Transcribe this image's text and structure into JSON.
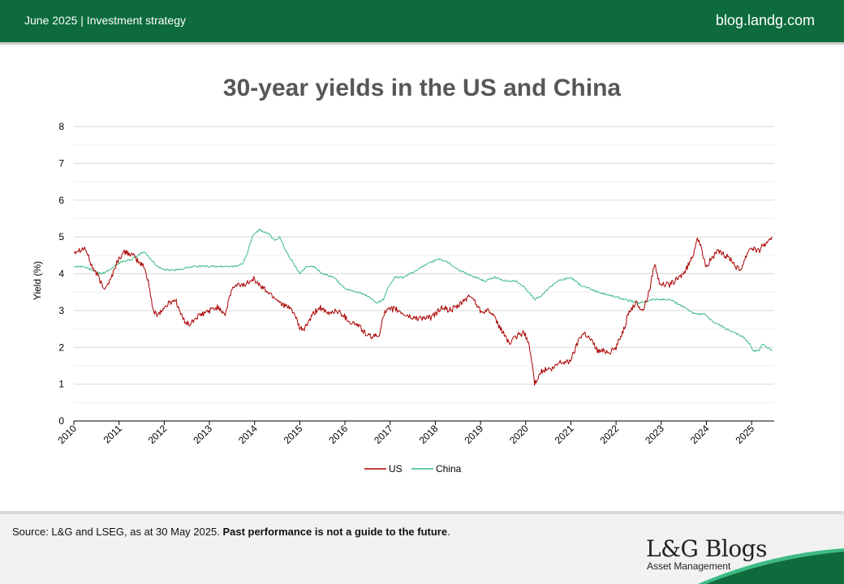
{
  "header": {
    "left_text": "June 2025 | Investment strategy",
    "right_text": "blog.landg.com"
  },
  "chart_data": {
    "type": "line",
    "title": "30-year yields in the US and China",
    "xlabel": "",
    "ylabel": "Yield (%)",
    "ylim": [
      0,
      8
    ],
    "yticks": [
      "0",
      "1",
      "2",
      "3",
      "4",
      "5",
      "6",
      "7",
      "8"
    ],
    "xlim": [
      2010.0,
      2025.5
    ],
    "xticks": [
      "2010",
      "2011",
      "2012",
      "2013",
      "2014",
      "2015",
      "2016",
      "2017",
      "2018",
      "2019",
      "2020",
      "2021",
      "2022",
      "2023",
      "2024",
      "2025"
    ],
    "grid": "horizontal",
    "legend": "bottom-center",
    "series": [
      {
        "name": "US",
        "color": "#aa0000",
        "x": [
          2010.0,
          2010.1,
          2010.25,
          2010.4,
          2010.55,
          2010.65,
          2010.8,
          2010.95,
          2011.05,
          2011.15,
          2011.3,
          2011.45,
          2011.55,
          2011.65,
          2011.75,
          2011.85,
          2011.95,
          2012.1,
          2012.25,
          2012.4,
          2012.55,
          2012.7,
          2012.85,
          2013.0,
          2013.2,
          2013.35,
          2013.5,
          2013.65,
          2013.8,
          2013.95,
          2014.1,
          2014.3,
          2014.5,
          2014.7,
          2014.85,
          2015.0,
          2015.1,
          2015.3,
          2015.45,
          2015.6,
          2015.8,
          2015.95,
          2016.1,
          2016.3,
          2016.5,
          2016.6,
          2016.75,
          2016.85,
          2016.95,
          2017.1,
          2017.3,
          2017.5,
          2017.7,
          2017.9,
          2018.0,
          2018.15,
          2018.3,
          2018.5,
          2018.65,
          2018.8,
          2018.9,
          2019.0,
          2019.2,
          2019.4,
          2019.55,
          2019.65,
          2019.8,
          2019.95,
          2020.05,
          2020.15,
          2020.2,
          2020.3,
          2020.45,
          2020.6,
          2020.75,
          2020.95,
          2021.05,
          2021.2,
          2021.3,
          2021.45,
          2021.6,
          2021.75,
          2021.9,
          2022.0,
          2022.1,
          2022.2,
          2022.3,
          2022.45,
          2022.6,
          2022.75,
          2022.85,
          2022.95,
          2023.05,
          2023.2,
          2023.4,
          2023.55,
          2023.7,
          2023.8,
          2023.9,
          2024.0,
          2024.1,
          2024.25,
          2024.4,
          2024.55,
          2024.65,
          2024.75,
          2024.85,
          2024.95,
          2025.05,
          2025.15,
          2025.25,
          2025.35,
          2025.45
        ],
        "values": [
          4.6,
          4.65,
          4.7,
          4.2,
          3.9,
          3.6,
          3.8,
          4.3,
          4.5,
          4.6,
          4.5,
          4.3,
          4.2,
          3.8,
          3.0,
          2.9,
          3.0,
          3.2,
          3.3,
          2.8,
          2.6,
          2.8,
          2.9,
          3.0,
          3.1,
          2.9,
          3.6,
          3.7,
          3.7,
          3.9,
          3.7,
          3.5,
          3.3,
          3.1,
          3.0,
          2.5,
          2.5,
          2.9,
          3.1,
          2.9,
          3.0,
          2.9,
          2.7,
          2.6,
          2.3,
          2.3,
          2.3,
          2.9,
          3.0,
          3.05,
          2.9,
          2.8,
          2.8,
          2.8,
          2.9,
          3.1,
          3.0,
          3.1,
          3.3,
          3.4,
          3.2,
          3.0,
          3.0,
          2.6,
          2.3,
          2.1,
          2.3,
          2.4,
          2.2,
          1.5,
          1.0,
          1.3,
          1.4,
          1.4,
          1.6,
          1.6,
          1.8,
          2.3,
          2.4,
          2.2,
          1.9,
          1.9,
          1.9,
          2.0,
          2.3,
          2.6,
          3.0,
          3.2,
          3.0,
          3.6,
          4.3,
          3.8,
          3.7,
          3.7,
          3.9,
          4.1,
          4.5,
          5.0,
          4.6,
          4.2,
          4.4,
          4.6,
          4.5,
          4.4,
          4.2,
          4.1,
          4.4,
          4.7,
          4.7,
          4.6,
          4.8,
          4.8,
          5.0
        ]
      },
      {
        "name": "China",
        "color": "#3dbb85",
        "x": [
          2010.0,
          2010.2,
          2010.4,
          2010.6,
          2010.8,
          2011.0,
          2011.3,
          2011.55,
          2011.7,
          2011.85,
          2012.0,
          2012.3,
          2012.6,
          2013.0,
          2013.3,
          2013.6,
          2013.75,
          2013.85,
          2013.95,
          2014.1,
          2014.3,
          2014.45,
          2014.55,
          2014.7,
          2014.85,
          2015.0,
          2015.15,
          2015.3,
          2015.5,
          2015.75,
          2016.0,
          2016.3,
          2016.5,
          2016.7,
          2016.85,
          2016.95,
          2017.1,
          2017.3,
          2017.6,
          2017.85,
          2018.1,
          2018.3,
          2018.5,
          2018.7,
          2018.9,
          2019.1,
          2019.3,
          2019.6,
          2019.8,
          2020.0,
          2020.2,
          2020.35,
          2020.5,
          2020.7,
          2021.0,
          2021.2,
          2021.4,
          2021.6,
          2021.9,
          2022.2,
          2022.5,
          2022.8,
          2023.0,
          2023.2,
          2023.5,
          2023.75,
          2023.95,
          2024.15,
          2024.3,
          2024.45,
          2024.6,
          2024.8,
          2024.95,
          2025.05,
          2025.15,
          2025.25,
          2025.45
        ],
        "values": [
          4.2,
          4.2,
          4.1,
          4.0,
          4.1,
          4.3,
          4.4,
          4.6,
          4.4,
          4.2,
          4.1,
          4.1,
          4.2,
          4.2,
          4.2,
          4.2,
          4.3,
          4.6,
          5.0,
          5.2,
          5.1,
          4.9,
          5.0,
          4.6,
          4.3,
          4.0,
          4.2,
          4.2,
          4.0,
          3.9,
          3.6,
          3.5,
          3.4,
          3.2,
          3.3,
          3.6,
          3.9,
          3.9,
          4.1,
          4.3,
          4.4,
          4.3,
          4.1,
          4.0,
          3.9,
          3.8,
          3.9,
          3.8,
          3.8,
          3.6,
          3.3,
          3.4,
          3.6,
          3.8,
          3.9,
          3.7,
          3.6,
          3.5,
          3.4,
          3.3,
          3.2,
          3.3,
          3.3,
          3.3,
          3.1,
          2.9,
          2.9,
          2.7,
          2.6,
          2.5,
          2.4,
          2.3,
          2.1,
          1.9,
          1.9,
          2.1,
          1.9
        ]
      }
    ]
  },
  "footer": {
    "source_text": "Source: L&G and LSEG, as at 30 May 2025. ",
    "source_bold": "Past performance is not a guide to the future",
    "source_end": ".",
    "logo_main": "L&G Blogs",
    "logo_sub": "Asset Management"
  },
  "colors": {
    "brand_green": "#0d6b3c",
    "us_line": "#aa0000",
    "china_line": "#3dbb85"
  }
}
